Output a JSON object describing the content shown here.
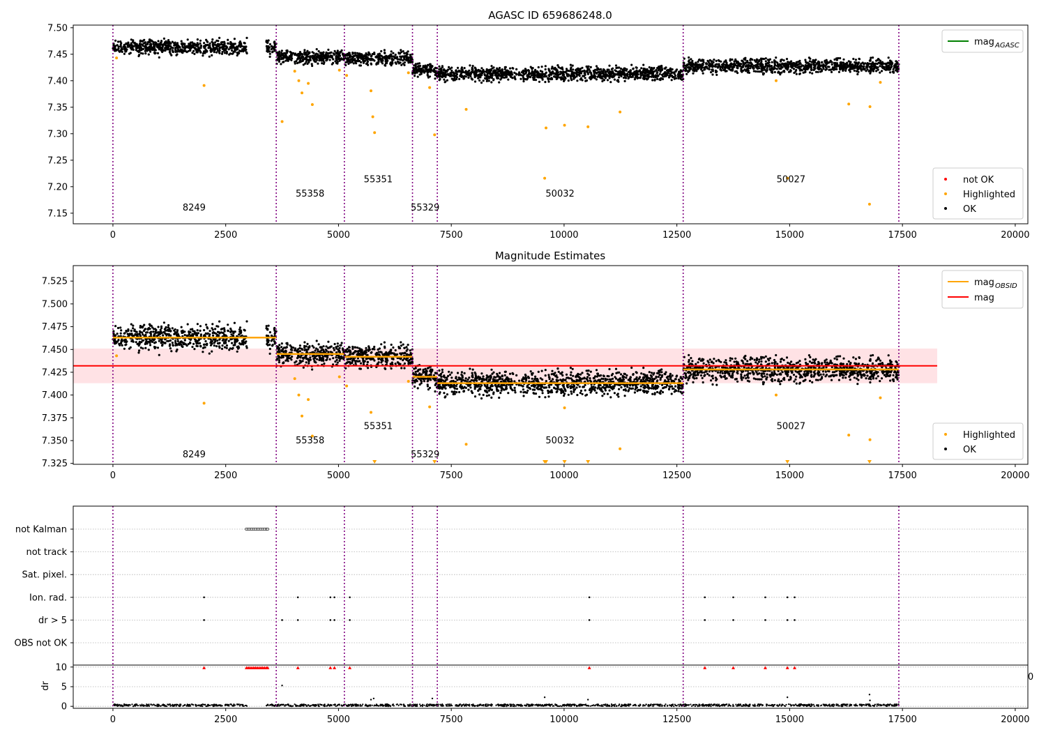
{
  "chart_data": [
    {
      "type": "scatter",
      "title": "AGASC ID 659686248.0",
      "xlim": [
        -880,
        20280
      ],
      "ylim": [
        7.13,
        7.505
      ],
      "x_ticks": [
        0,
        2500,
        5000,
        7500,
        10000,
        12500,
        15000,
        17500,
        20000
      ],
      "x_tick_labels": [
        "0",
        "2500",
        "5000",
        "7500",
        "10000",
        "12500",
        "15000",
        "17500",
        "20000"
      ],
      "y_ticks": [
        7.15,
        7.2,
        7.25,
        7.3,
        7.35,
        7.4,
        7.45,
        7.5
      ],
      "y_tick_labels": [
        "7.15",
        "7.20",
        "7.25",
        "7.30",
        "7.35",
        "7.40",
        "7.45",
        "7.50"
      ],
      "obsid_boundaries": [
        0,
        3620,
        5130,
        6640,
        7190,
        12640,
        17420
      ],
      "obsid_labels": [
        {
          "text": "8249",
          "x": 1800,
          "y": 7.155
        },
        {
          "text": "55358",
          "x": 4370,
          "y": 7.181
        },
        {
          "text": "55351",
          "x": 5880,
          "y": 7.208
        },
        {
          "text": "55329",
          "x": 6920,
          "y": 7.155
        },
        {
          "text": "50032",
          "x": 9910,
          "y": 7.181
        },
        {
          "text": "50027",
          "x": 15030,
          "y": 7.208
        }
      ],
      "ok_segments": [
        {
          "x_start": 0,
          "x_end": 2970,
          "mean": 7.463,
          "spread": 0.012
        },
        {
          "x_start": 3400,
          "x_end": 3620,
          "mean": 7.463,
          "spread": 0.012
        },
        {
          "x_start": 3620,
          "x_end": 5130,
          "mean": 7.445,
          "spread": 0.011
        },
        {
          "x_start": 5130,
          "x_end": 6640,
          "mean": 7.442,
          "spread": 0.011
        },
        {
          "x_start": 6640,
          "x_end": 7190,
          "mean": 7.42,
          "spread": 0.011
        },
        {
          "x_start": 7190,
          "x_end": 12640,
          "mean": 7.413,
          "spread": 0.011
        },
        {
          "x_start": 12640,
          "x_end": 17420,
          "mean": 7.428,
          "spread": 0.011
        }
      ],
      "highlighted_points": {
        "x": [
          80,
          2020,
          3750,
          4030,
          4120,
          4190,
          4330,
          4420,
          5020,
          5180,
          5720,
          5760,
          5800,
          6550,
          7020,
          7130,
          7830,
          9570,
          9600,
          10010,
          10530,
          11240,
          14700,
          14950,
          16310,
          16770,
          16780,
          17010
        ],
        "y": [
          7.443,
          7.391,
          7.323,
          7.418,
          7.4,
          7.377,
          7.395,
          7.355,
          7.42,
          7.41,
          7.381,
          7.332,
          7.302,
          7.415,
          7.387,
          7.298,
          7.346,
          7.216,
          7.311,
          7.316,
          7.313,
          7.341,
          7.4,
          7.216,
          7.356,
          7.167,
          7.351,
          7.397
        ]
      },
      "legend_lines": [
        {
          "label": "mag",
          "subscript": "AGASC",
          "color": "#008000"
        }
      ],
      "legend_markers": [
        {
          "label": "not OK",
          "color": "#ff0000"
        },
        {
          "label": "Highlighted",
          "color": "#ffa500"
        },
        {
          "label": "OK",
          "color": "#000000"
        }
      ],
      "legend_lines_position": "top-right",
      "legend_markers_position": "lower-right"
    },
    {
      "type": "scatter",
      "title": "Magnitude Estimates",
      "xlim": [
        -880,
        20280
      ],
      "ylim": [
        7.324,
        7.542
      ],
      "x_ticks": [
        0,
        2500,
        5000,
        7500,
        10000,
        12500,
        15000,
        17500,
        20000
      ],
      "x_tick_labels": [
        "0",
        "2500",
        "5000",
        "7500",
        "10000",
        "12500",
        "15000",
        "17500",
        "20000"
      ],
      "y_ticks": [
        7.325,
        7.35,
        7.375,
        7.4,
        7.425,
        7.45,
        7.475,
        7.5,
        7.525
      ],
      "y_tick_labels": [
        "7.325",
        "7.350",
        "7.375",
        "7.400",
        "7.425",
        "7.450",
        "7.475",
        "7.500",
        "7.525"
      ],
      "obsid_boundaries": [
        0,
        3620,
        5130,
        6640,
        7190,
        12640,
        17420
      ],
      "obsid_labels": [
        {
          "text": "8249",
          "x": 1800,
          "y": 7.3315
        },
        {
          "text": "55358",
          "x": 4370,
          "y": 7.347
        },
        {
          "text": "55351",
          "x": 5880,
          "y": 7.3625
        },
        {
          "text": "55329",
          "x": 6920,
          "y": 7.3315
        },
        {
          "text": "50032",
          "x": 9910,
          "y": 7.347
        },
        {
          "text": "50027",
          "x": 15030,
          "y": 7.3625
        }
      ],
      "mag": 7.432,
      "mag_band": [
        7.413,
        7.451
      ],
      "mag_line_x": [
        -880,
        18270
      ],
      "mag_obsid_steps": [
        {
          "x_start": 0,
          "x_end": 3620,
          "y": 7.463
        },
        {
          "x_start": 3620,
          "x_end": 5130,
          "y": 7.445
        },
        {
          "x_start": 5130,
          "x_end": 6640,
          "y": 7.442
        },
        {
          "x_start": 6640,
          "x_end": 7190,
          "y": 7.42
        },
        {
          "x_start": 7190,
          "x_end": 12640,
          "y": 7.413
        },
        {
          "x_start": 12640,
          "x_end": 17420,
          "y": 7.428
        }
      ],
      "ok_segments": [
        {
          "x_start": 0,
          "x_end": 2970,
          "mean": 7.463,
          "spread": 0.012
        },
        {
          "x_start": 3400,
          "x_end": 3620,
          "mean": 7.463,
          "spread": 0.012
        },
        {
          "x_start": 3620,
          "x_end": 5130,
          "mean": 7.445,
          "spread": 0.011
        },
        {
          "x_start": 5130,
          "x_end": 6640,
          "mean": 7.442,
          "spread": 0.011
        },
        {
          "x_start": 6640,
          "x_end": 7190,
          "mean": 7.42,
          "spread": 0.011
        },
        {
          "x_start": 7190,
          "x_end": 12640,
          "mean": 7.413,
          "spread": 0.011
        },
        {
          "x_start": 12640,
          "x_end": 17420,
          "mean": 7.428,
          "spread": 0.011
        }
      ],
      "highlighted_points": {
        "x": [
          80,
          2020,
          4030,
          4120,
          4190,
          4330,
          4420,
          5020,
          5180,
          5720,
          6550,
          7020,
          7830,
          10010,
          11240,
          14700,
          16310,
          16780,
          17010
        ],
        "y": [
          7.443,
          7.391,
          7.418,
          7.4,
          7.377,
          7.395,
          7.355,
          7.42,
          7.41,
          7.381,
          7.415,
          7.387,
          7.346,
          7.386,
          7.341,
          7.4,
          7.356,
          7.351,
          7.397
        ]
      },
      "offscale_points_x": [
        5800,
        7130,
        9570,
        9600,
        10010,
        10530,
        14950,
        16770
      ],
      "legend_lines": [
        {
          "label": "mag",
          "subscript": "OBSID",
          "color": "#ffa500"
        },
        {
          "label": "mag",
          "subscript": "",
          "color": "#ff0000"
        }
      ],
      "legend_markers": [
        {
          "label": "Highlighted",
          "color": "#ffa500"
        },
        {
          "label": "OK",
          "color": "#000000"
        }
      ],
      "legend_lines_position": "top-right",
      "legend_markers_position": "lower-right"
    },
    {
      "type": "scatter",
      "title": "",
      "xlim": [
        -880,
        20280
      ],
      "flag_labels": [
        "not Kalman",
        "not track",
        "Sat. pixel.",
        "Ion. rad.",
        "dr > 5",
        "OBS not OK"
      ],
      "obsid_boundaries": [
        0,
        3620,
        5130,
        6640,
        7190,
        12640,
        17420
      ],
      "flags": {
        "not Kalman": [
          2960,
          3000,
          3040,
          3080,
          3120,
          3160,
          3200,
          3240,
          3280,
          3320,
          3360,
          3400,
          3430
        ],
        "not track": [],
        "Sat. pixel.": [],
        "Ion. rad.": [
          2020,
          4100,
          4820,
          4910,
          5250,
          10560,
          13120,
          13750,
          14460,
          14950,
          15110
        ],
        "dr > 5": [
          2020,
          3750,
          4100,
          4820,
          4910,
          5250,
          10560,
          13120,
          13750,
          14460,
          14950,
          15110
        ],
        "OBS not OK": []
      },
      "dr": {
        "ylabel": "dr",
        "ylim": [
          -0.5,
          10.5
        ],
        "y_ticks": [
          0,
          5,
          10
        ],
        "y_tick_labels": [
          "0",
          "5",
          "10"
        ],
        "x_ticks": [
          0,
          2500,
          5000,
          7500,
          10000,
          12500,
          15000,
          17500,
          20000
        ],
        "x_tick_labels": [
          "0",
          "2500",
          "5000",
          "7500",
          "10000",
          "12500",
          "15000",
          "17500",
          "20000"
        ],
        "ok_segments": [
          {
            "x_start": 0,
            "x_end": 2970
          },
          {
            "x_start": 3400,
            "x_end": 17420
          }
        ],
        "clipped_x": [
          2020,
          2960,
          3000,
          3040,
          3080,
          3120,
          3160,
          3200,
          3240,
          3280,
          3320,
          3360,
          3400,
          3430,
          4100,
          4820,
          4910,
          5250,
          10560,
          13120,
          13750,
          14460,
          14950,
          15110
        ],
        "outliers": {
          "x": [
            3750,
            5720,
            5780,
            7080,
            9570,
            10530,
            14950,
            16770,
            16780
          ],
          "y": [
            5.3,
            1.7,
            2.0,
            2.0,
            2.3,
            1.7,
            2.3,
            3.0,
            1.5
          ]
        },
        "stray_tick_label": "0"
      }
    }
  ]
}
